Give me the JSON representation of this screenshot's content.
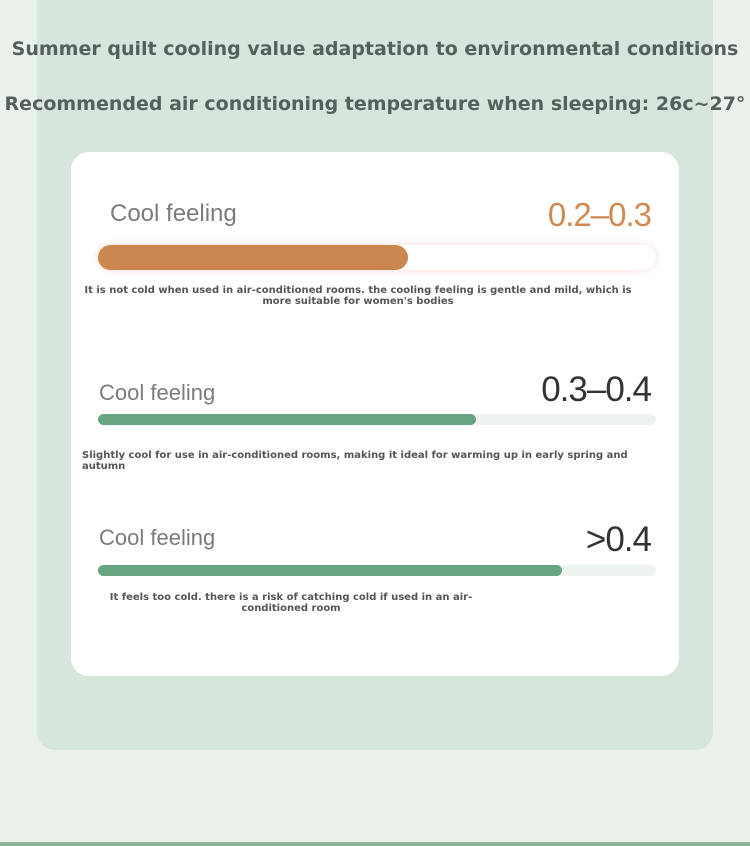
{
  "header": {
    "title": "Summer quilt cooling value adaptation to environmental conditions",
    "subtitle": "Recommended air conditioning temperature when sleeping: 26c~27°"
  },
  "items": [
    {
      "label": "Cool feeling",
      "value": "0.2–0.3",
      "description": "It is not cold when used in air-conditioned rooms. the cooling feeling is gentle and mild, which is more suitable for women's bodies"
    },
    {
      "label": "Cool feeling",
      "value": "0.3–0.4",
      "description": "Slightly cool for use in air-conditioned rooms, making it ideal for warming up in early spring and autumn"
    },
    {
      "label": "Cool feeling",
      "value": ">0.4",
      "description": "It feels too cold. there is a risk of catching cold if used in an air-conditioned room"
    }
  ]
}
